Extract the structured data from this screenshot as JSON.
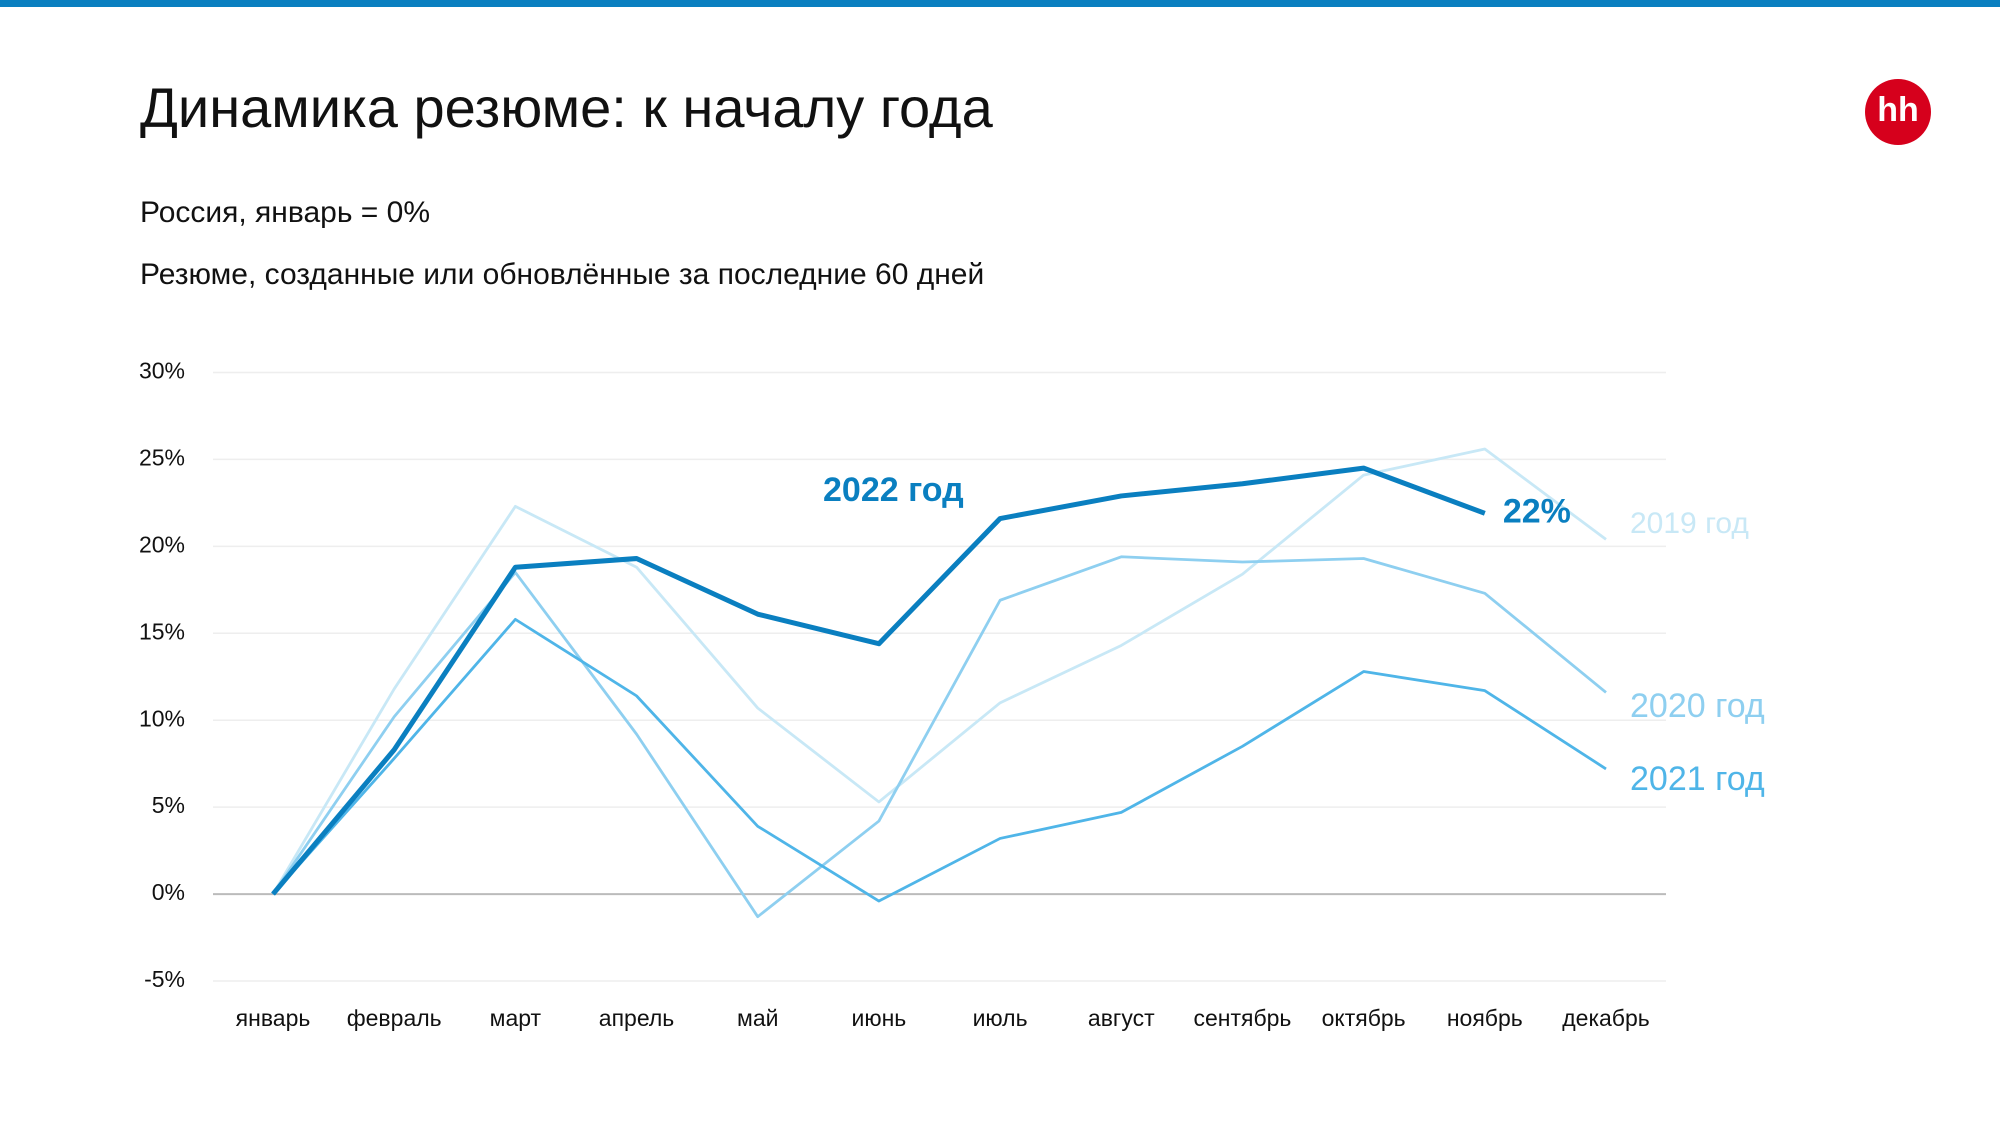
{
  "header": {
    "title": "Динамика резюме: к началу года",
    "subtitle": "Россия, январь = 0%",
    "subtitle2": "Резюме, созданные или обновлённые за последние 60 дней"
  },
  "logo": {
    "text": "hh"
  },
  "chart_data": {
    "type": "line",
    "categories": [
      "январь",
      "февраль",
      "март",
      "апрель",
      "май",
      "июнь",
      "июль",
      "август",
      "сентябрь",
      "октябрь",
      "ноябрь",
      "декабрь"
    ],
    "series": [
      {
        "name": "2019 год",
        "color": "#c8e8f6",
        "values": [
          0,
          11.8,
          22.3,
          18.8,
          10.7,
          5.3,
          11.0,
          14.3,
          18.4,
          24.1,
          25.6,
          20.4
        ]
      },
      {
        "name": "2020 год",
        "color": "#8ecff0",
        "values": [
          0,
          10.2,
          18.5,
          9.2,
          -1.3,
          4.2,
          16.9,
          19.4,
          19.1,
          19.3,
          17.3,
          11.6
        ]
      },
      {
        "name": "2021 год",
        "color": "#4fb5e8",
        "values": [
          0,
          7.8,
          15.8,
          11.4,
          3.9,
          -0.4,
          3.2,
          4.7,
          8.5,
          12.8,
          11.7,
          7.2
        ]
      },
      {
        "name": "2022 год",
        "color": "#0a7fc0",
        "values": [
          0,
          8.3,
          18.8,
          19.3,
          16.1,
          14.4,
          21.6,
          22.9,
          23.6,
          24.5,
          21.9,
          null
        ],
        "value_labels": [
          null,
          null,
          null,
          null,
          null,
          null,
          null,
          null,
          null,
          null,
          "22%",
          null
        ]
      }
    ],
    "ylim": [
      -5,
      30
    ],
    "yticks": [
      {
        "value": -5,
        "label": "-5%"
      },
      {
        "value": 0,
        "label": "0%"
      },
      {
        "value": 5,
        "label": "5%"
      },
      {
        "value": 10,
        "label": "10%"
      },
      {
        "value": 15,
        "label": "15%"
      },
      {
        "value": 20,
        "label": "20%"
      },
      {
        "value": 25,
        "label": "25%"
      },
      {
        "value": 30,
        "label": "30%"
      }
    ],
    "grid": true
  }
}
